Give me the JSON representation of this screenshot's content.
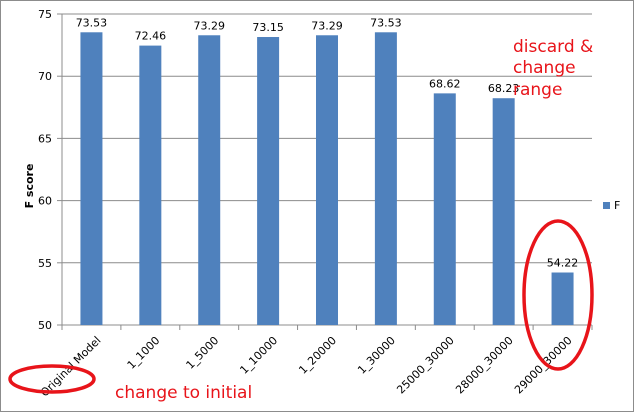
{
  "chart_data": {
    "type": "bar",
    "categories": [
      "Original Model",
      "1_1000",
      "1_5000",
      "1_10000",
      "1_20000",
      "1_30000",
      "25000_30000",
      "28000_30000",
      "29000_30000"
    ],
    "series": [
      {
        "name": "F",
        "values": [
          73.53,
          72.46,
          73.29,
          73.15,
          73.29,
          73.53,
          68.62,
          68.23,
          54.22
        ]
      }
    ],
    "data_labels": [
      "73.53",
      "72.46",
      "73.29",
      "73.15",
      "73.29",
      "73.53",
      "68.62",
      "68.23",
      "54.22"
    ],
    "ylabel": "F score",
    "ylim": [
      50,
      75
    ],
    "yticks": [
      50,
      55,
      60,
      65,
      70,
      75
    ],
    "grid": true,
    "legend": "right",
    "colors": {
      "bar": "#4f81bd",
      "grid": "#8c8c8c",
      "annotation": "#e8141a"
    }
  },
  "annotations": {
    "discard_lines": [
      "discard &",
      "change",
      "range"
    ],
    "change_initial": "change to initial"
  }
}
